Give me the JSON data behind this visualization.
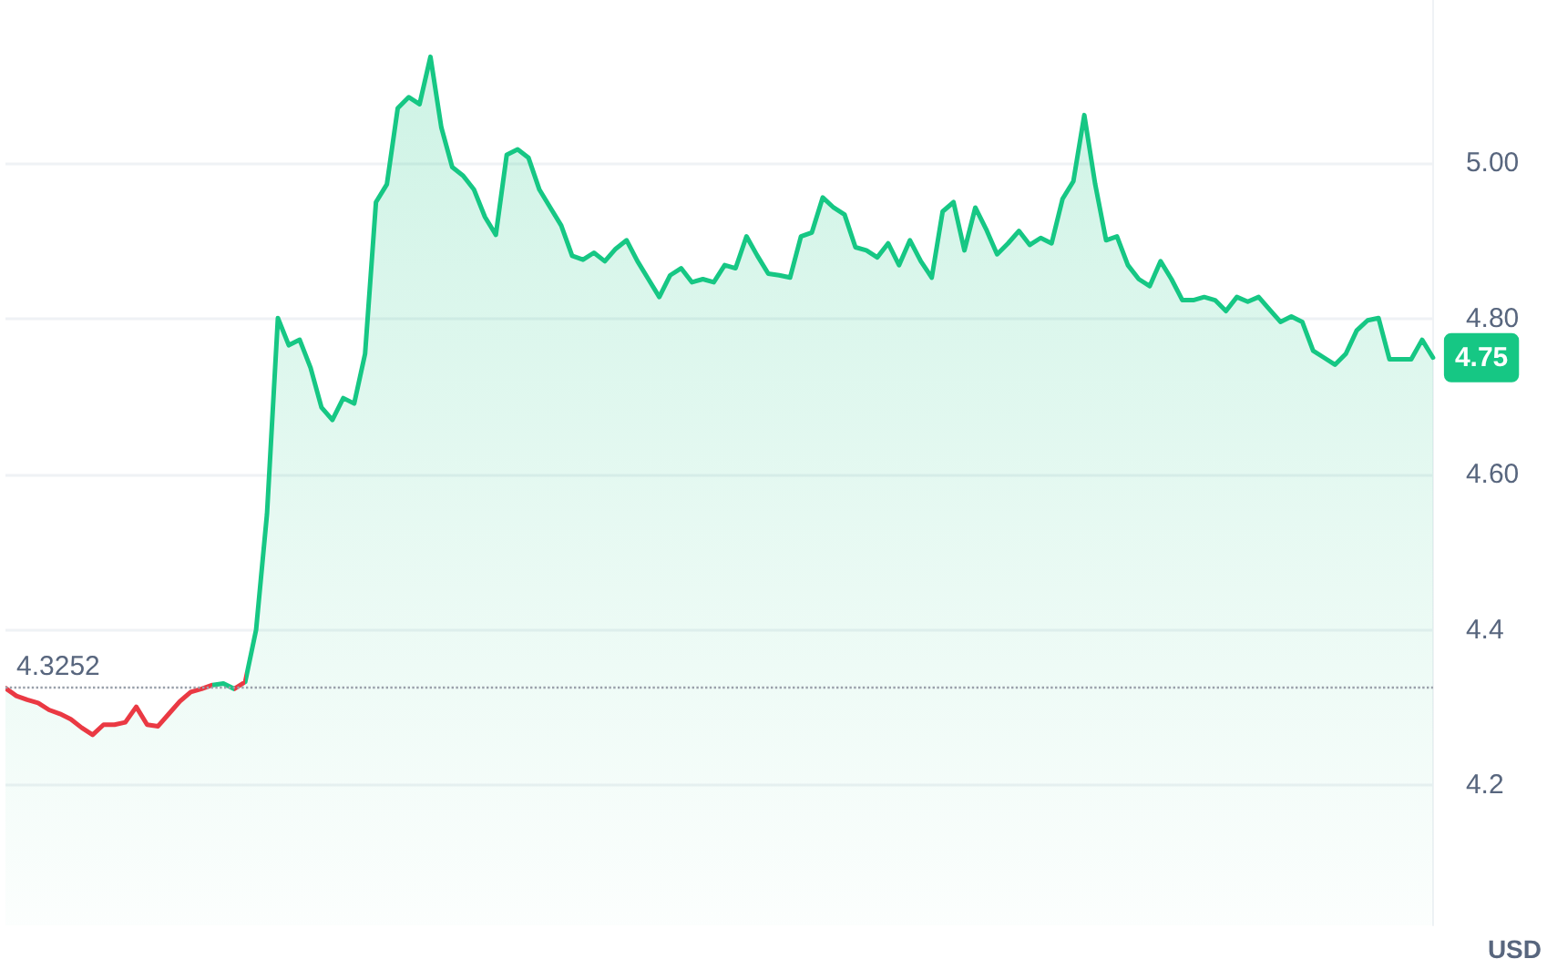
{
  "chart_data": {
    "type": "area",
    "ylabel": "USD",
    "categories": [
      null,
      null,
      null,
      null,
      null,
      null,
      null,
      null,
      null,
      null,
      null,
      null,
      null,
      null,
      null,
      null,
      null,
      null,
      null,
      null,
      null,
      null,
      null,
      null,
      null,
      null,
      null,
      null,
      null,
      null,
      null,
      null,
      null,
      null,
      null,
      null,
      null,
      null,
      null,
      null,
      null,
      null,
      null,
      null,
      null,
      null,
      null,
      null,
      null,
      null,
      null,
      null,
      null,
      null,
      null,
      null,
      null,
      null,
      null,
      null,
      null,
      null,
      null,
      null,
      null,
      null,
      null,
      null,
      null,
      null,
      null,
      null,
      null,
      null,
      null,
      null,
      null,
      null,
      null,
      null,
      null,
      null,
      null,
      null,
      null,
      null,
      null,
      null,
      null,
      null,
      null,
      null,
      null,
      null,
      null,
      null,
      null,
      null,
      null,
      null,
      null,
      null,
      null,
      null,
      null,
      null,
      null,
      null,
      null,
      null,
      null,
      null,
      null,
      null,
      null,
      null,
      null,
      null,
      null,
      null,
      null,
      null,
      null,
      null,
      null,
      null,
      null,
      null,
      null,
      null,
      null,
      null
    ],
    "series": [
      {
        "color": "#16c784",
        "colors": [
          "#ea3943",
          "#ea3943",
          "#ea3943",
          "#ea3943",
          "#ea3943",
          "#ea3943",
          "#ea3943",
          "#ea3943",
          "#ea3943",
          "#ea3943",
          "#ea3943",
          "#ea3943",
          "#ea3943",
          "#ea3943",
          "#ea3943",
          "#ea3943",
          "#ea3943",
          "#ea3943",
          "#ea3943",
          "#16c784",
          "#16c784",
          "#ea3943",
          "#16c784",
          "#16c784",
          "#16c784",
          "#16c784",
          "#16c784",
          "#16c784",
          "#16c784",
          "#16c784",
          "#16c784",
          "#16c784",
          "#16c784",
          "#16c784",
          "#16c784",
          "#16c784",
          "#16c784",
          "#16c784",
          "#16c784",
          "#16c784",
          "#16c784",
          "#16c784",
          "#16c784",
          "#16c784",
          "#16c784",
          "#16c784",
          "#16c784",
          "#16c784",
          "#16c784",
          "#16c784",
          "#16c784",
          "#16c784",
          "#16c784",
          "#16c784",
          "#16c784",
          "#16c784",
          "#16c784",
          "#16c784",
          "#16c784",
          "#16c784",
          "#16c784",
          "#16c784",
          "#16c784",
          "#16c784",
          "#16c784",
          "#16c784",
          "#16c784",
          "#16c784",
          "#16c784",
          "#16c784",
          "#16c784",
          "#16c784",
          "#16c784",
          "#16c784",
          "#16c784",
          "#16c784",
          "#16c784",
          "#16c784",
          "#16c784",
          "#16c784",
          "#16c784",
          "#16c784",
          "#16c784",
          "#16c784",
          "#16c784",
          "#16c784",
          "#16c784",
          "#16c784",
          "#16c784",
          "#16c784",
          "#16c784",
          "#16c784",
          "#16c784",
          "#16c784",
          "#16c784",
          "#16c784",
          "#16c784",
          "#16c784",
          "#16c784",
          "#16c784",
          "#16c784",
          "#16c784",
          "#16c784",
          "#16c784",
          "#16c784",
          "#16c784",
          "#16c784",
          "#16c784",
          "#16c784",
          "#16c784",
          "#16c784",
          "#16c784",
          "#16c784",
          "#16c784",
          "#16c784",
          "#16c784",
          "#16c784",
          "#16c784",
          "#16c784",
          "#16c784",
          "#16c784",
          "#16c784",
          "#16c784",
          "#16c784",
          "#16c784",
          "#16c784",
          "#16c784",
          "#16c784",
          "#16c784",
          "#16c784",
          "#16c784",
          "#16c784"
        ],
        "values": [
          4.325,
          4.315,
          4.31,
          4.306,
          4.297,
          4.292,
          4.285,
          4.274,
          4.265,
          4.278,
          4.278,
          4.281,
          4.301,
          4.278,
          4.276,
          4.292,
          4.308,
          4.32,
          4.324,
          4.329,
          4.331,
          4.324,
          4.333,
          4.4,
          4.549,
          4.801,
          4.766,
          4.773,
          4.737,
          4.686,
          4.67,
          4.698,
          4.691,
          4.755,
          4.95,
          4.973,
          5.071,
          5.085,
          5.076,
          5.137,
          5.046,
          4.995,
          4.984,
          4.966,
          4.931,
          4.908,
          5.011,
          5.018,
          5.007,
          4.966,
          4.943,
          4.92,
          4.881,
          4.876,
          4.885,
          4.874,
          4.89,
          4.901,
          4.874,
          4.851,
          4.828,
          4.856,
          4.865,
          4.847,
          4.851,
          4.847,
          4.869,
          4.865,
          4.906,
          4.881,
          4.858,
          4.856,
          4.853,
          4.906,
          4.911,
          4.956,
          4.943,
          4.934,
          4.892,
          4.888,
          4.879,
          4.897,
          4.869,
          4.901,
          4.874,
          4.853,
          4.938,
          4.95,
          4.888,
          4.943,
          4.915,
          4.883,
          4.897,
          4.913,
          4.895,
          4.904,
          4.897,
          4.954,
          4.977,
          5.062,
          4.973,
          4.901,
          4.906,
          4.869,
          4.851,
          4.842,
          4.874,
          4.851,
          4.824,
          4.824,
          4.828,
          4.824,
          4.81,
          4.828,
          4.822,
          4.828,
          4.812,
          4.796,
          4.803,
          4.796,
          4.759,
          4.75,
          4.741,
          4.755,
          4.785,
          4.798,
          4.801,
          4.748,
          4.748,
          4.748,
          4.773,
          4.75
        ],
        "value_labels": [
          null,
          null,
          null,
          null,
          null,
          null,
          null,
          null,
          null,
          null,
          null,
          null,
          null,
          null,
          null,
          null,
          null,
          null,
          null,
          null,
          null,
          null,
          null,
          null,
          null,
          null,
          null,
          null,
          null,
          null,
          null,
          null,
          null,
          null,
          null,
          null,
          null,
          null,
          null,
          null,
          null,
          null,
          null,
          null,
          null,
          null,
          null,
          null,
          null,
          null,
          null,
          null,
          null,
          null,
          null,
          null,
          null,
          null,
          null,
          null,
          null,
          null,
          null,
          null,
          null,
          null,
          null,
          null,
          null,
          null,
          null,
          null,
          null,
          null,
          null,
          null,
          null,
          null,
          null,
          null,
          null,
          null,
          null,
          null,
          null,
          null,
          null,
          null,
          null,
          null,
          null,
          null,
          null,
          null,
          null,
          null,
          null,
          null,
          null,
          null,
          null,
          null,
          null,
          null,
          null,
          null,
          null,
          null,
          null,
          null,
          null,
          null,
          null,
          null,
          null,
          null,
          null,
          null,
          null,
          null,
          null,
          null,
          null,
          null,
          null,
          null,
          null,
          null,
          null,
          null,
          null,
          "4.75"
        ]
      }
    ],
    "ylim": [
      4.02,
      5.21
    ],
    "yticks": [
      4.2,
      4.4,
      {
        "value": 4.6,
        "label": "4.60"
      },
      {
        "value": 4.8,
        "label": "4.80"
      },
      {
        "value": 5.0,
        "label": "5.00"
      }
    ],
    "ref_lines": [
      {
        "axis": "y",
        "value": 4.3252,
        "label": "4.3252",
        "color": "#9aa0aa",
        "line_style": "dotted"
      }
    ],
    "grid": "y",
    "marker": "none",
    "line_style": "solid"
  }
}
